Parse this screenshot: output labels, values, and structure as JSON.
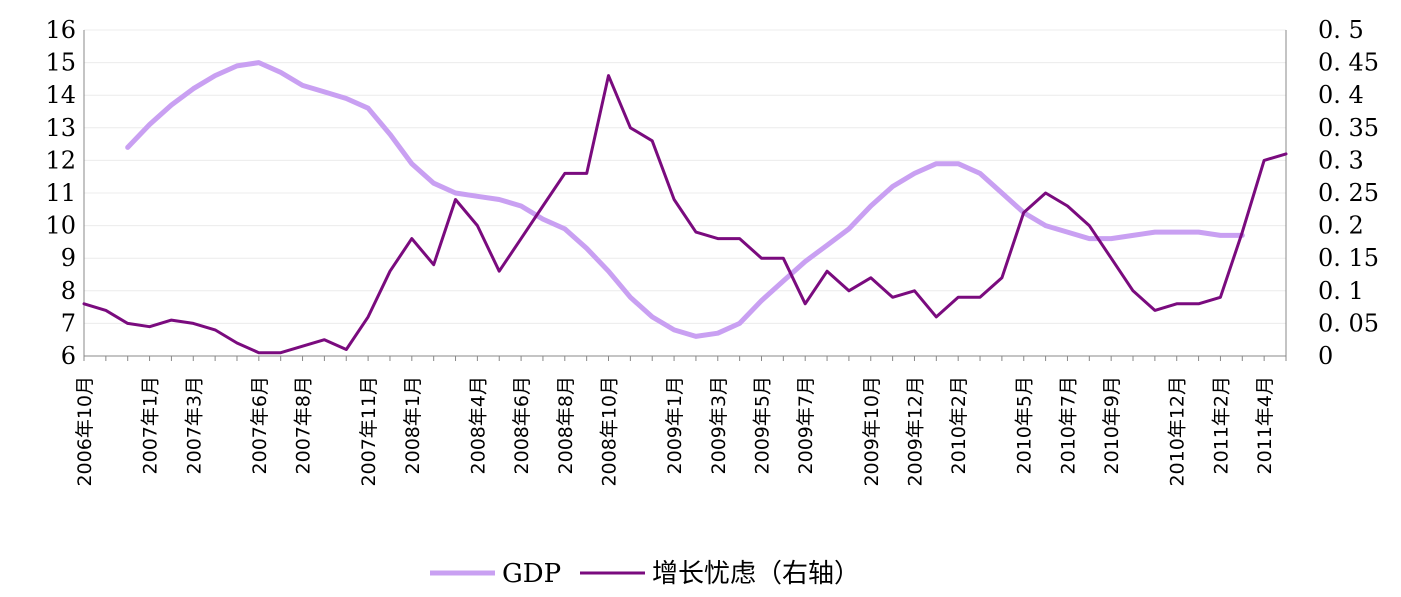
{
  "chart_data": {
    "type": "line",
    "x": [
      "2006-10",
      "2006-11",
      "2006-12",
      "2007-01",
      "2007-02",
      "2007-03",
      "2007-04",
      "2007-05",
      "2007-06",
      "2007-07",
      "2007-08",
      "2007-09",
      "2007-10",
      "2007-11",
      "2007-12",
      "2008-01",
      "2008-02",
      "2008-03",
      "2008-04",
      "2008-05",
      "2008-06",
      "2008-07",
      "2008-08",
      "2008-09",
      "2008-10",
      "2008-11",
      "2008-12",
      "2009-01",
      "2009-02",
      "2009-03",
      "2009-04",
      "2009-05",
      "2009-06",
      "2009-07",
      "2009-08",
      "2009-09",
      "2009-10",
      "2009-11",
      "2009-12",
      "2010-01",
      "2010-02",
      "2010-03",
      "2010-04",
      "2010-05",
      "2010-06",
      "2010-07",
      "2010-08",
      "2010-09",
      "2010-10",
      "2010-11",
      "2010-12",
      "2011-01",
      "2011-02",
      "2011-03",
      "2011-04",
      "2011-05"
    ],
    "x_tick_labels": [
      "2006年10月",
      "2007年1月",
      "2007年3月",
      "2007年6月",
      "2007年8月",
      "2007年11月",
      "2008年1月",
      "2008年4月",
      "2008年6月",
      "2008年8月",
      "2008年10月",
      "2009年1月",
      "2009年3月",
      "2009年5月",
      "2009年7月",
      "2009年10月",
      "2009年12月",
      "2010年2月",
      "2010年5月",
      "2010年7月",
      "2010年9月",
      "2010年12月",
      "2011年2月",
      "2011年4月"
    ],
    "x_tick_months": [
      "2006-10",
      "2007-01",
      "2007-03",
      "2007-06",
      "2007-08",
      "2007-11",
      "2008-01",
      "2008-04",
      "2008-06",
      "2008-08",
      "2008-10",
      "2009-01",
      "2009-03",
      "2009-05",
      "2009-07",
      "2009-10",
      "2009-12",
      "2010-02",
      "2010-05",
      "2010-07",
      "2010-09",
      "2010-12",
      "2011-02",
      "2011-04"
    ],
    "y_left": {
      "min": 6,
      "max": 16,
      "ticks": [
        "6",
        "7",
        "8",
        "9",
        "10",
        "11",
        "12",
        "13",
        "14",
        "15",
        "16"
      ]
    },
    "y_right": {
      "min": 0,
      "max": 0.5,
      "ticks": [
        "0",
        "0.05",
        "0.1",
        "0.15",
        "0.2",
        "0.25",
        "0.3",
        "0.35",
        "0.4",
        "0.45",
        "0.5"
      ]
    },
    "series": [
      {
        "name": "GDP",
        "axis": "left",
        "color": "#C9A0F2",
        "values": [
          null,
          null,
          12.4,
          13.1,
          13.7,
          14.2,
          14.6,
          14.9,
          15.0,
          14.7,
          14.3,
          14.1,
          13.9,
          13.6,
          12.8,
          11.9,
          11.3,
          11.0,
          10.9,
          10.8,
          10.6,
          10.2,
          9.9,
          9.3,
          8.6,
          7.8,
          7.2,
          6.8,
          6.6,
          6.7,
          7.0,
          7.7,
          8.3,
          8.9,
          9.4,
          9.9,
          10.6,
          11.2,
          11.6,
          11.9,
          11.9,
          11.6,
          11.0,
          10.4,
          10.0,
          9.8,
          9.6,
          9.6,
          9.7,
          9.8,
          9.8,
          9.8,
          9.7,
          9.7,
          null,
          null
        ]
      },
      {
        "name": "增长忧虑（右轴）",
        "axis": "right",
        "color": "#7A0B7E",
        "values": [
          0.08,
          0.07,
          0.05,
          0.045,
          0.055,
          0.05,
          0.04,
          0.02,
          0.005,
          0.005,
          0.015,
          0.025,
          0.01,
          0.06,
          0.13,
          0.18,
          0.14,
          0.24,
          0.2,
          0.13,
          0.18,
          0.23,
          0.28,
          0.28,
          0.43,
          0.35,
          0.33,
          0.24,
          0.19,
          0.18,
          0.18,
          0.15,
          0.15,
          0.08,
          0.13,
          0.1,
          0.12,
          0.09,
          0.1,
          0.06,
          0.09,
          0.09,
          0.12,
          0.22,
          0.25,
          0.23,
          0.2,
          0.15,
          0.1,
          0.07,
          0.08,
          0.08,
          0.09,
          0.19,
          0.3,
          0.31
        ]
      }
    ]
  }
}
